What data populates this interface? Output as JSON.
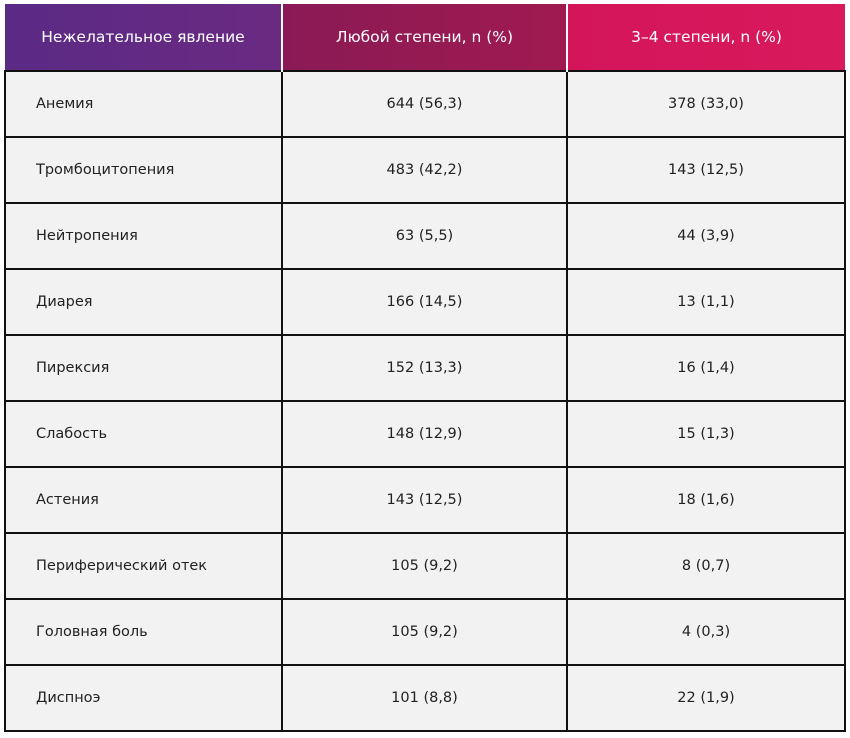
{
  "table": {
    "headers": [
      "Нежелательное явление",
      "Любой степени, n (%)",
      "3–4 степени, n (%)"
    ],
    "rows": [
      [
        "Анемия",
        "644 (56,3)",
        "378 (33,0)"
      ],
      [
        "Тромбоцитопения",
        "483 (42,2)",
        "143 (12,5)"
      ],
      [
        "Нейтропения",
        "63 (5,5)",
        "44 (3,9)"
      ],
      [
        "Диарея",
        "166 (14,5)",
        "13 (1,1)"
      ],
      [
        "Пирексия",
        "152 (13,3)",
        "16 (1,4)"
      ],
      [
        "Слабость",
        "148 (12,9)",
        "15 (1,3)"
      ],
      [
        "Астения",
        "143 (12,5)",
        "18 (1,6)"
      ],
      [
        "Периферический отек",
        "105 (9,2)",
        "8 (0,7)"
      ],
      [
        "Головная боль",
        "105 (9,2)",
        "4 (0,3)"
      ],
      [
        "Диспноэ",
        "101 (8,8)",
        "22 (1,9)"
      ]
    ]
  },
  "colors": {
    "header_col1": "#5a2a85",
    "header_col2": "#961a52",
    "header_col3": "#d4155a",
    "cell_background": "#f2f2f2",
    "border": "#111111"
  }
}
